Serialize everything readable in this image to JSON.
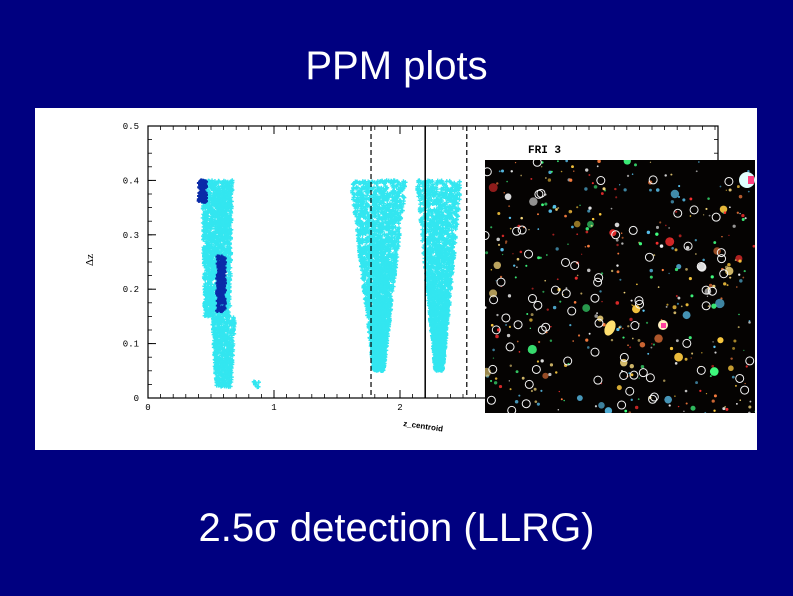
{
  "slide": {
    "title": "PPM plots",
    "subtitle": "2.5σ detection (LLRG)"
  },
  "inset": {
    "description_icon": "galaxy-field-image"
  },
  "chart_data": {
    "type": "scatter",
    "title": "FRI 3",
    "xlabel": "z_centroid",
    "ylabel": "Δz",
    "xlim": [
      0,
      4.5
    ],
    "ylim": [
      0,
      0.5
    ],
    "xticks": [
      "0",
      "1",
      "2"
    ],
    "yticks": [
      "0",
      "0.1",
      "0.2",
      "0.3",
      "0.4",
      "0.5"
    ],
    "series": [
      {
        "name": "",
        "color": "#33e6f0",
        "clusters": [
          {
            "x_center": 0.55,
            "x_halfwidth_top": 0.12,
            "x_halfwidth_bottom": 0.1,
            "y_min": 0.15,
            "y_max": 0.4
          },
          {
            "x_center": 0.6,
            "x_halfwidth_top": 0.09,
            "x_halfwidth_bottom": 0.06,
            "y_min": 0.02,
            "y_max": 0.15
          },
          {
            "x_center": 0.86,
            "x_halfwidth_top": 0.02,
            "x_halfwidth_bottom": 0.02,
            "y_min": 0.02,
            "y_max": 0.03
          },
          {
            "x_center": 1.83,
            "x_halfwidth_top": 0.22,
            "x_halfwidth_bottom": 0.04,
            "y_min": 0.05,
            "y_max": 0.4
          },
          {
            "x_center": 2.31,
            "x_halfwidth_top": 0.18,
            "x_halfwidth_bottom": 0.03,
            "y_min": 0.05,
            "y_max": 0.4
          }
        ]
      },
      {
        "name": "",
        "color": "#0a2aa8",
        "clusters": [
          {
            "x_center": 0.43,
            "x_halfwidth_top": 0.03,
            "x_halfwidth_bottom": 0.03,
            "y_min": 0.36,
            "y_max": 0.4
          },
          {
            "x_center": 0.58,
            "x_halfwidth_top": 0.03,
            "x_halfwidth_bottom": 0.03,
            "y_min": 0.16,
            "y_max": 0.26
          }
        ]
      }
    ],
    "vlines": [
      {
        "x": 1.77,
        "style": "dashed"
      },
      {
        "x": 2.2,
        "style": "solid"
      },
      {
        "x": 2.53,
        "style": "dashed"
      }
    ]
  }
}
